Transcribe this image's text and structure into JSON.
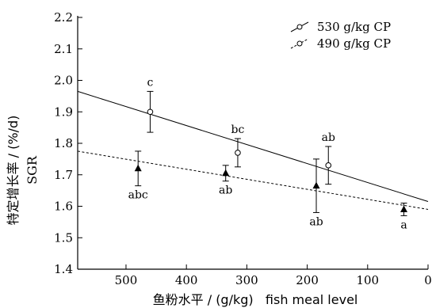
{
  "chart_data": {
    "type": "scatter",
    "xlabel": "鱼粉水平 / (g/kg)   fish meal level",
    "ylabel_cn": "特定增长率 / (%/d)",
    "ylabel_en": "SGR",
    "xlim": [
      580,
      0
    ],
    "ylim": [
      1.4,
      2.2
    ],
    "x_ticks": [
      500,
      400,
      300,
      200,
      100,
      0
    ],
    "y_ticks": [
      1.4,
      1.5,
      1.6,
      1.7,
      1.8,
      1.9,
      2.0,
      2.1,
      2.2
    ],
    "legend_position": "top-right",
    "series": [
      {
        "name": "530 g/kg CP",
        "marker": "open-circle",
        "line": "solid",
        "points": [
          {
            "x": 460,
            "y": 1.9,
            "err": 0.065,
            "label": "c",
            "label_pos": "above"
          },
          {
            "x": 315,
            "y": 1.77,
            "err": 0.045,
            "label": "bc",
            "label_pos": "above"
          },
          {
            "x": 165,
            "y": 1.73,
            "err": 0.06,
            "label": "ab",
            "label_pos": "above"
          }
        ],
        "fit_line": [
          [
            580,
            1.965
          ],
          [
            0,
            1.615
          ]
        ]
      },
      {
        "name": "490 g/kg CP",
        "marker": "filled-triangle",
        "line": "dashed",
        "points": [
          {
            "x": 480,
            "y": 1.72,
            "err": 0.055,
            "label": "abc",
            "label_pos": "below"
          },
          {
            "x": 335,
            "y": 1.705,
            "err": 0.025,
            "label": "ab",
            "label_pos": "below"
          },
          {
            "x": 185,
            "y": 1.665,
            "err": 0.085,
            "label": "ab",
            "label_pos": "below"
          },
          {
            "x": 40,
            "y": 1.59,
            "err": 0.02,
            "label": "a",
            "label_pos": "below"
          }
        ],
        "fit_line": [
          [
            580,
            1.775
          ],
          [
            0,
            1.59
          ]
        ]
      }
    ]
  }
}
